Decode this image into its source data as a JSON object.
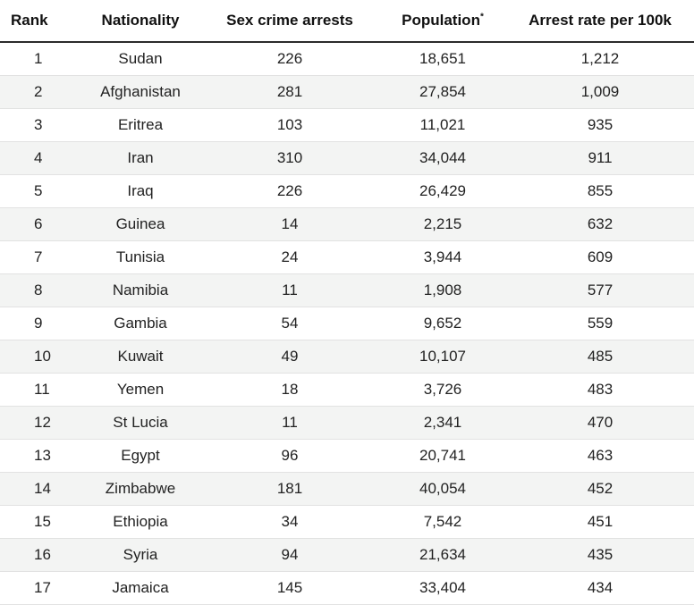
{
  "headers": {
    "rank": "Rank",
    "nationality": "Nationality",
    "arrests": "Sex crime arrests",
    "population": "Population",
    "population_mark": "*",
    "rate": "Arrest rate per 100k"
  },
  "rows": [
    {
      "rank": "1",
      "nationality": "Sudan",
      "arrests": "226",
      "population": "18,651",
      "rate": "1,212"
    },
    {
      "rank": "2",
      "nationality": "Afghanistan",
      "arrests": "281",
      "population": "27,854",
      "rate": "1,009"
    },
    {
      "rank": "3",
      "nationality": "Eritrea",
      "arrests": "103",
      "population": "11,021",
      "rate": "935"
    },
    {
      "rank": "4",
      "nationality": "Iran",
      "arrests": "310",
      "population": "34,044",
      "rate": "911"
    },
    {
      "rank": "5",
      "nationality": "Iraq",
      "arrests": "226",
      "population": "26,429",
      "rate": "855"
    },
    {
      "rank": "6",
      "nationality": "Guinea",
      "arrests": "14",
      "population": "2,215",
      "rate": "632"
    },
    {
      "rank": "7",
      "nationality": "Tunisia",
      "arrests": "24",
      "population": "3,944",
      "rate": "609"
    },
    {
      "rank": "8",
      "nationality": "Namibia",
      "arrests": "11",
      "population": "1,908",
      "rate": "577"
    },
    {
      "rank": "9",
      "nationality": "Gambia",
      "arrests": "54",
      "population": "9,652",
      "rate": "559"
    },
    {
      "rank": "10",
      "nationality": "Kuwait",
      "arrests": "49",
      "population": "10,107",
      "rate": "485"
    },
    {
      "rank": "11",
      "nationality": "Yemen",
      "arrests": "18",
      "population": "3,726",
      "rate": "483"
    },
    {
      "rank": "12",
      "nationality": "St Lucia",
      "arrests": "11",
      "population": "2,341",
      "rate": "470"
    },
    {
      "rank": "13",
      "nationality": "Egypt",
      "arrests": "96",
      "population": "20,741",
      "rate": "463"
    },
    {
      "rank": "14",
      "nationality": "Zimbabwe",
      "arrests": "181",
      "population": "40,054",
      "rate": "452"
    },
    {
      "rank": "15",
      "nationality": "Ethiopia",
      "arrests": "34",
      "population": "7,542",
      "rate": "451"
    },
    {
      "rank": "16",
      "nationality": "Syria",
      "arrests": "94",
      "population": "21,634",
      "rate": "435"
    },
    {
      "rank": "17",
      "nationality": "Jamaica",
      "arrests": "145",
      "population": "33,404",
      "rate": "434"
    }
  ]
}
